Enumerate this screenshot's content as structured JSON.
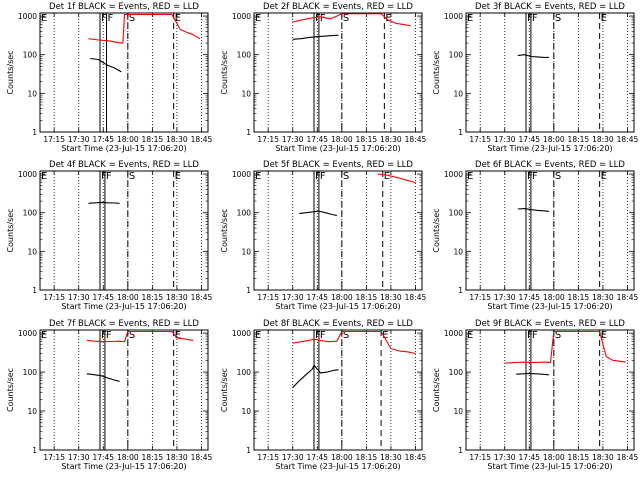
{
  "figure": {
    "xlabel": "Start Time (23-Jul-15 17:06:20)",
    "ylabel": "Counts/sec",
    "xtick_labels": [
      "17:15",
      "17:30",
      "17:45",
      "18:00",
      "18:15",
      "18:30",
      "18:45"
    ],
    "ytick_labels": [
      "1",
      "10",
      "100",
      "1000"
    ],
    "marker_labels": {
      "E": "E",
      "F": "F",
      "S": "S"
    },
    "colors": {
      "events": "#000000",
      "lld": "#ff0000",
      "axes": "#000000"
    }
  },
  "chart_data": [
    {
      "type": "line",
      "title": "Det 1f BLACK = Events, RED = LLD",
      "x_range": [
        "17:06:20",
        "18:49:00"
      ],
      "y_scale": "log",
      "ylim": [
        1,
        1200
      ],
      "series": [
        {
          "name": "Events",
          "color": "#000000",
          "x": [
            "17:37",
            "17:42",
            "17:47",
            "17:52",
            "17:55",
            "17:56"
          ],
          "y": [
            80,
            75,
            55,
            45,
            38,
            36
          ]
        },
        {
          "name": "LLD",
          "color": "#ff0000",
          "x": [
            "17:36",
            "17:42",
            "17:48",
            "17:53",
            "17:57",
            "17:58",
            "18:27",
            "18:28",
            "18:30",
            "18:32",
            "18:36",
            "18:40",
            "18:44"
          ],
          "y": [
            260,
            240,
            230,
            210,
            200,
            1100,
            1100,
            900,
            650,
            450,
            380,
            330,
            260
          ]
        }
      ],
      "markers": [
        {
          "label": "E",
          "x": "17:06:20",
          "style": "solid"
        },
        {
          "label": "F",
          "x": "17:43",
          "style": "solid"
        },
        {
          "label": "F",
          "x": "17:47",
          "style": "solid"
        },
        {
          "label": "S",
          "x": "18:00",
          "style": "dashed"
        },
        {
          "label": "E",
          "x": "18:28",
          "style": "dashed"
        }
      ]
    },
    {
      "type": "line",
      "title": "Det 2f BLACK = Events, RED = LLD",
      "x_range": [
        "17:06:20",
        "18:49:00"
      ],
      "y_scale": "log",
      "ylim": [
        1,
        1200
      ],
      "series": [
        {
          "name": "Events",
          "color": "#000000",
          "x": [
            "17:30",
            "17:35",
            "17:40",
            "17:44",
            "17:48",
            "17:53",
            "17:58"
          ],
          "y": [
            250,
            260,
            280,
            290,
            300,
            310,
            320
          ]
        },
        {
          "name": "LLD",
          "color": "#ff0000",
          "x": [
            "17:30",
            "17:36",
            "17:42",
            "17:47",
            "17:53",
            "17:57",
            "18:00",
            "18:05",
            "18:10",
            "18:15",
            "18:20",
            "18:24",
            "18:28",
            "18:33",
            "18:38",
            "18:42"
          ],
          "y": [
            700,
            800,
            900,
            950,
            850,
            1000,
            1150,
            1150,
            1150,
            1150,
            1150,
            1150,
            800,
            650,
            600,
            560
          ]
        }
      ],
      "markers": [
        {
          "label": "E",
          "x": "17:06:20",
          "style": "solid"
        },
        {
          "label": "F",
          "x": "17:43",
          "style": "solid"
        },
        {
          "label": "F",
          "x": "17:46",
          "style": "solid"
        },
        {
          "label": "S",
          "x": "18:00",
          "style": "dashed"
        },
        {
          "label": "E",
          "x": "18:26",
          "style": "dashed"
        }
      ]
    },
    {
      "type": "line",
      "title": "Det 3f BLACK = Events, RED = LLD",
      "x_range": [
        "17:06:20",
        "18:49:00"
      ],
      "y_scale": "log",
      "ylim": [
        1,
        1200
      ],
      "series": [
        {
          "name": "Events",
          "color": "#000000",
          "x": [
            "17:38",
            "17:42",
            "17:46",
            "17:50",
            "17:54",
            "17:57"
          ],
          "y": [
            95,
            100,
            90,
            88,
            85,
            85
          ]
        }
      ],
      "markers": [
        {
          "label": "E",
          "x": "17:06:20",
          "style": "solid"
        },
        {
          "label": "F",
          "x": "17:43",
          "style": "solid"
        },
        {
          "label": "F",
          "x": "17:46",
          "style": "solid"
        },
        {
          "label": "S",
          "x": "18:00",
          "style": "dashed"
        },
        {
          "label": "E",
          "x": "18:28",
          "style": "dashed"
        }
      ]
    },
    {
      "type": "line",
      "title": "Det 4f BLACK = Events, RED = LLD",
      "x_range": [
        "17:06:20",
        "18:49:00"
      ],
      "y_scale": "log",
      "ylim": [
        1,
        1200
      ],
      "series": [
        {
          "name": "Events",
          "color": "#000000",
          "x": [
            "17:36",
            "17:40",
            "17:44",
            "17:48",
            "17:52",
            "17:55"
          ],
          "y": [
            175,
            180,
            185,
            180,
            178,
            175
          ]
        }
      ],
      "markers": [
        {
          "label": "E",
          "x": "17:06:20",
          "style": "solid"
        },
        {
          "label": "F",
          "x": "17:43",
          "style": "solid"
        },
        {
          "label": "F",
          "x": "17:46",
          "style": "solid"
        },
        {
          "label": "S",
          "x": "18:00",
          "style": "dashed"
        },
        {
          "label": "E",
          "x": "18:28",
          "style": "dashed"
        }
      ]
    },
    {
      "type": "line",
      "title": "Det 5f BLACK = Events, RED = LLD",
      "x_range": [
        "17:06:20",
        "18:49:00"
      ],
      "y_scale": "log",
      "ylim": [
        1,
        1200
      ],
      "series": [
        {
          "name": "Events",
          "color": "#000000",
          "x": [
            "17:34",
            "17:38",
            "17:42",
            "17:46",
            "17:50",
            "17:54",
            "17:57"
          ],
          "y": [
            95,
            100,
            105,
            110,
            100,
            90,
            85
          ]
        },
        {
          "name": "LLD",
          "color": "#ff0000",
          "x": [
            "18:22",
            "18:27",
            "18:32",
            "18:37",
            "18:42",
            "18:45"
          ],
          "y": [
            1000,
            950,
            850,
            750,
            650,
            600
          ]
        }
      ],
      "markers": [
        {
          "label": "E",
          "x": "17:06:20",
          "style": "solid"
        },
        {
          "label": "F",
          "x": "17:43",
          "style": "solid"
        },
        {
          "label": "F",
          "x": "17:46",
          "style": "solid"
        },
        {
          "label": "S",
          "x": "18:00",
          "style": "dashed"
        },
        {
          "label": "E",
          "x": "18:25",
          "style": "dashed"
        }
      ]
    },
    {
      "type": "line",
      "title": "Det 6f BLACK = Events, RED = LLD",
      "x_range": [
        "17:06:20",
        "18:49:00"
      ],
      "y_scale": "log",
      "ylim": [
        1,
        1200
      ],
      "series": [
        {
          "name": "Events",
          "color": "#000000",
          "x": [
            "17:38",
            "17:42",
            "17:46",
            "17:50",
            "17:54",
            "17:57"
          ],
          "y": [
            125,
            128,
            120,
            115,
            112,
            108
          ]
        }
      ],
      "markers": [
        {
          "label": "E",
          "x": "17:06:20",
          "style": "solid"
        },
        {
          "label": "F",
          "x": "17:43",
          "style": "solid"
        },
        {
          "label": "F",
          "x": "17:46",
          "style": "solid"
        },
        {
          "label": "S",
          "x": "18:00",
          "style": "dashed"
        },
        {
          "label": "E",
          "x": "18:28",
          "style": "dashed"
        }
      ]
    },
    {
      "type": "line",
      "title": "Det 7f BLACK = Events, RED = LLD",
      "x_range": [
        "17:06:20",
        "18:49:00"
      ],
      "y_scale": "log",
      "ylim": [
        1,
        1200
      ],
      "series": [
        {
          "name": "Events",
          "color": "#000000",
          "x": [
            "17:35",
            "17:40",
            "17:44",
            "17:48",
            "17:52",
            "17:55"
          ],
          "y": [
            90,
            85,
            80,
            70,
            62,
            58
          ]
        },
        {
          "name": "LLD",
          "color": "#ff0000",
          "x": [
            "17:35",
            "17:40",
            "17:45",
            "17:50",
            "17:55",
            "17:58",
            "18:00",
            "18:10",
            "18:20",
            "18:27",
            "18:30",
            "18:35",
            "18:40"
          ],
          "y": [
            650,
            620,
            600,
            610,
            620,
            600,
            1100,
            1100,
            1100,
            1100,
            750,
            700,
            650
          ]
        }
      ],
      "markers": [
        {
          "label": "E",
          "x": "17:06:20",
          "style": "solid"
        },
        {
          "label": "F",
          "x": "17:43",
          "style": "solid"
        },
        {
          "label": "F",
          "x": "17:46",
          "style": "solid"
        },
        {
          "label": "S",
          "x": "18:00",
          "style": "dashed"
        },
        {
          "label": "E",
          "x": "18:28",
          "style": "dashed"
        }
      ]
    },
    {
      "type": "line",
      "title": "Det 8f BLACK = Events, RED = LLD",
      "x_range": [
        "17:06:20",
        "18:49:00"
      ],
      "y_scale": "log",
      "ylim": [
        1,
        1200
      ],
      "series": [
        {
          "name": "Events",
          "color": "#000000",
          "x": [
            "17:30",
            "17:34",
            "17:38",
            "17:42",
            "17:43",
            "17:47",
            "17:51",
            "17:55",
            "17:58"
          ],
          "y": [
            40,
            60,
            85,
            120,
            150,
            95,
            100,
            110,
            115
          ]
        },
        {
          "name": "LLD",
          "color": "#ff0000",
          "x": [
            "17:30",
            "17:35",
            "17:40",
            "17:43",
            "17:47",
            "17:52",
            "17:57",
            "18:00",
            "18:10",
            "18:20",
            "18:24",
            "18:30",
            "18:35",
            "18:40",
            "18:45"
          ],
          "y": [
            550,
            600,
            650,
            700,
            650,
            600,
            620,
            1100,
            1100,
            1100,
            1100,
            400,
            350,
            330,
            300
          ]
        }
      ],
      "markers": [
        {
          "label": "E",
          "x": "17:06:20",
          "style": "solid"
        },
        {
          "label": "F",
          "x": "17:43",
          "style": "solid"
        },
        {
          "label": "F",
          "x": "17:46",
          "style": "solid"
        },
        {
          "label": "S",
          "x": "18:00",
          "style": "dashed"
        },
        {
          "label": "E",
          "x": "18:24",
          "style": "dashed"
        }
      ]
    },
    {
      "type": "line",
      "title": "Det 9f BLACK = Events, RED = LLD",
      "x_range": [
        "17:06:20",
        "18:49:00"
      ],
      "y_scale": "log",
      "ylim": [
        1,
        1200
      ],
      "series": [
        {
          "name": "Events",
          "color": "#000000",
          "x": [
            "17:37",
            "17:41",
            "17:45",
            "17:49",
            "17:53",
            "17:57"
          ],
          "y": [
            88,
            90,
            92,
            90,
            88,
            85
          ]
        },
        {
          "name": "LLD",
          "color": "#ff0000",
          "x": [
            "17:30",
            "17:36",
            "17:42",
            "17:48",
            "17:54",
            "17:58",
            "18:00",
            "18:10",
            "18:20",
            "18:28",
            "18:32",
            "18:36",
            "18:40",
            "18:44"
          ],
          "y": [
            170,
            175,
            180,
            175,
            180,
            175,
            1100,
            1100,
            1100,
            1100,
            250,
            200,
            190,
            180
          ]
        }
      ],
      "markers": [
        {
          "label": "E",
          "x": "17:06:20",
          "style": "solid"
        },
        {
          "label": "F",
          "x": "17:43",
          "style": "solid"
        },
        {
          "label": "F",
          "x": "17:46",
          "style": "solid"
        },
        {
          "label": "S",
          "x": "18:00",
          "style": "dashed"
        },
        {
          "label": "E",
          "x": "18:28",
          "style": "dashed"
        }
      ]
    }
  ]
}
